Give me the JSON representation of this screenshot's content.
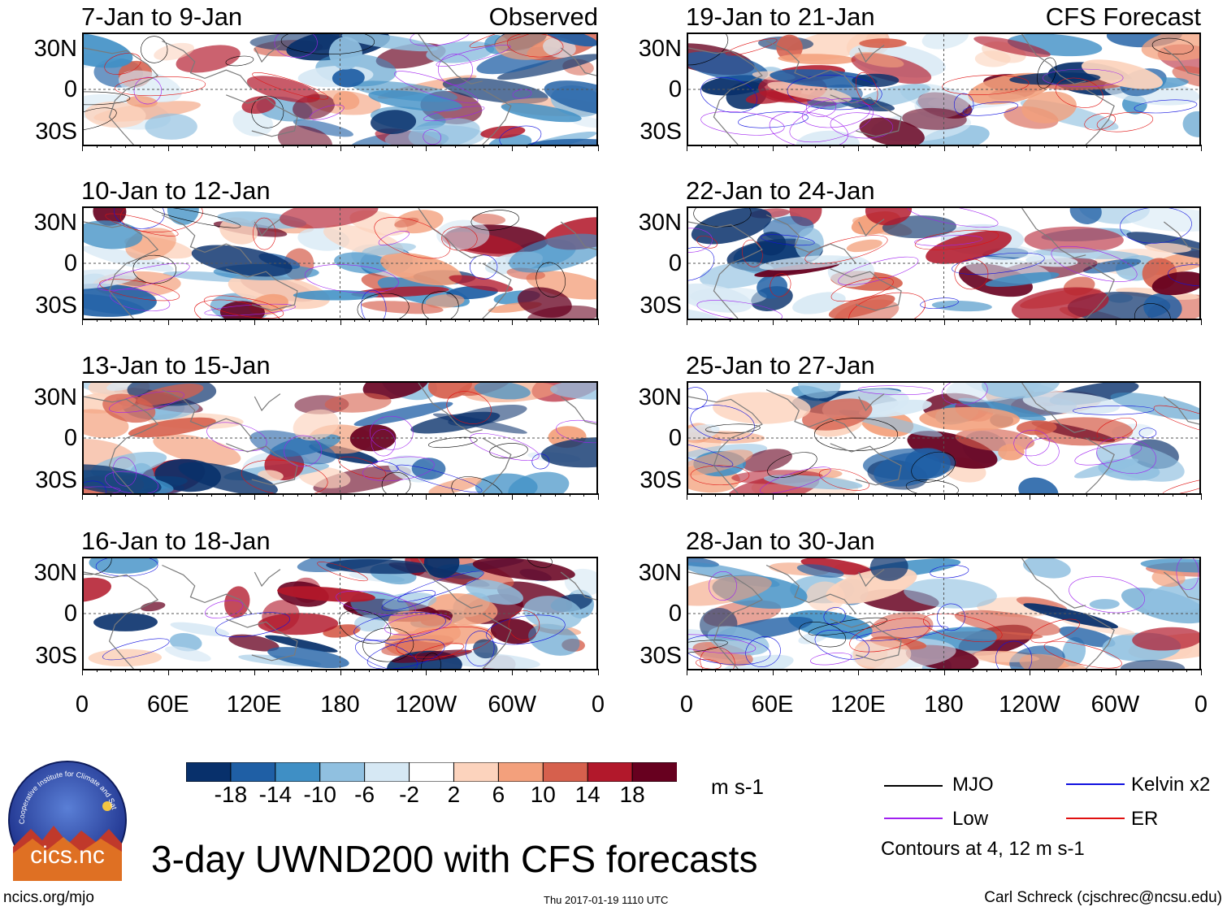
{
  "chart_data": {
    "type": "heatmap",
    "variable": "3-day UWND200 with CFS forecasts",
    "units": "m s-1",
    "colorbar": {
      "ticks": [
        "-18",
        "-14",
        "-10",
        "-6",
        "-2",
        "2",
        "6",
        "10",
        "14",
        "18"
      ],
      "colors": [
        "#08306b",
        "#1f5fa5",
        "#3f8fc5",
        "#90c0e0",
        "#d6e8f4",
        "#ffffff",
        "#fcd3bd",
        "#f3a07c",
        "#d6604d",
        "#b2182b",
        "#67001f"
      ]
    },
    "x_ticks": [
      "0",
      "60E",
      "120E",
      "180",
      "120W",
      "60W",
      "0"
    ],
    "y_ticks": [
      "30N",
      "0",
      "30S"
    ],
    "x_range_deg": [
      0,
      360
    ],
    "y_range_deg": [
      -40,
      40
    ],
    "panels": [
      {
        "title": "7-Jan to 9-Jan",
        "source": "Observed",
        "column": "observed"
      },
      {
        "title": "10-Jan to 12-Jan",
        "source": "",
        "column": "observed"
      },
      {
        "title": "13-Jan to 15-Jan",
        "source": "",
        "column": "observed"
      },
      {
        "title": "16-Jan to 18-Jan",
        "source": "",
        "column": "observed"
      },
      {
        "title": "19-Jan to 21-Jan",
        "source": "CFS Forecast",
        "column": "forecast"
      },
      {
        "title": "22-Jan to 24-Jan",
        "source": "",
        "column": "forecast"
      },
      {
        "title": "25-Jan to 27-Jan",
        "source": "",
        "column": "forecast"
      },
      {
        "title": "28-Jan to 30-Jan",
        "source": "",
        "column": "forecast"
      }
    ],
    "contour_legend": [
      {
        "label": "MJO",
        "color": "#000000"
      },
      {
        "label": "Kelvin x2",
        "color": "#1010e0"
      },
      {
        "label": "Low",
        "color": "#a020f0"
      },
      {
        "label": "ER",
        "color": "#e01010"
      }
    ],
    "contour_note": "Contours at 4, 12 m s-1"
  },
  "title": "3-day UWND200 with CFS forecasts",
  "logo": {
    "text": "cics.nc",
    "arc_text": "Cooperative Institute for Climate and Satellites"
  },
  "footer": {
    "left": "ncics.org/mjo",
    "center": "Thu 2017-01-19 1110 UTC",
    "right": "Carl Schreck (cjschrec@ncsu.edu)"
  }
}
